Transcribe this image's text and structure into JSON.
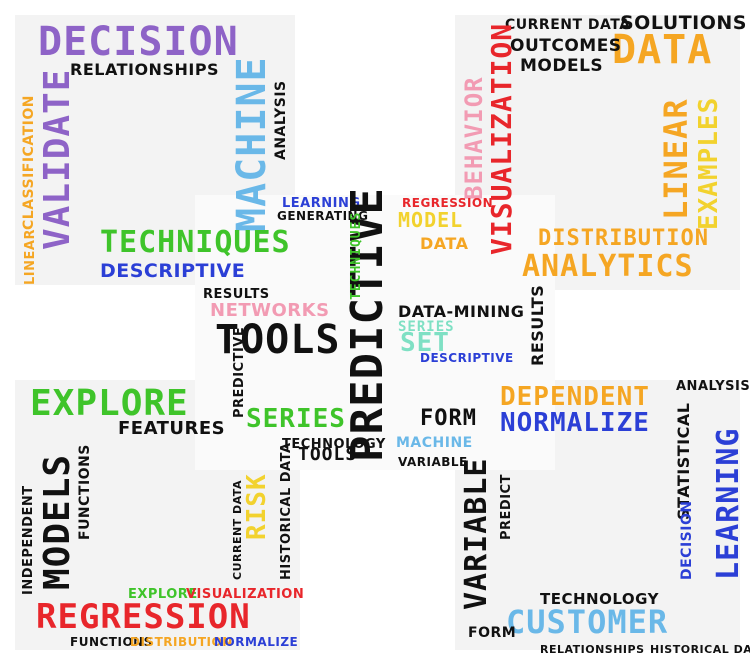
{
  "words": {
    "decision": "DECISION",
    "relationships": "RELATIONSHIPS",
    "machine": "MACHINE",
    "analysis": "ANALYSIS",
    "validate": "VALIDATE",
    "classification": "CLASSIFICATION",
    "linear": "LINEAR",
    "techniques": "TECHNIQUES",
    "descriptive": "DESCRIPTIVE",
    "generating": "GENERATING",
    "learning": "LEARNING",
    "results": "RESULTS",
    "data": "DATA",
    "solutions": "SOLUTIONS",
    "outcomes": "OUTCOMES",
    "models": "MODELS",
    "current_data": "CURRENT DATA",
    "visualization": "VISUALIZATION",
    "behavior": "BEHAVIOR",
    "examples": "EXAMPLES",
    "distribution": "DISTRIBUTION",
    "analytics": "ANALYTICS",
    "regression": "REGRESSION",
    "model": "MODEL",
    "predictive": "PREDICTIVE",
    "tools": "TOOLS",
    "networks": "NETWORKS",
    "data_mining": "DATA-MINING",
    "series": "SERIES",
    "set": "SET",
    "explore": "EXPLORE",
    "features": "FEATURES",
    "risk": "RISK",
    "historical_data": "HISTORICAL DATA",
    "functions": "FUNCTIONS",
    "independent": "INDEPENDENT",
    "dependent": "DEPENDENT",
    "normalize": "NORMALIZE",
    "form": "FORM",
    "variable": "VARIABLE",
    "predict": "PREDICT",
    "statistical": "STATISTICAL",
    "technology": "TECHNOLOGY",
    "customer": "CUSTOMER"
  },
  "colors": {
    "purple": "#8e63c7",
    "blue": "#2b3fd6",
    "sky": "#6ab8e8",
    "green": "#3fc42a",
    "orange": "#f5a623",
    "red": "#e8262b",
    "pink": "#f29bb3",
    "mint": "#7fe0c4",
    "yellow": "#f2d22e",
    "black": "#111111",
    "gray": "#9a9a9a"
  }
}
